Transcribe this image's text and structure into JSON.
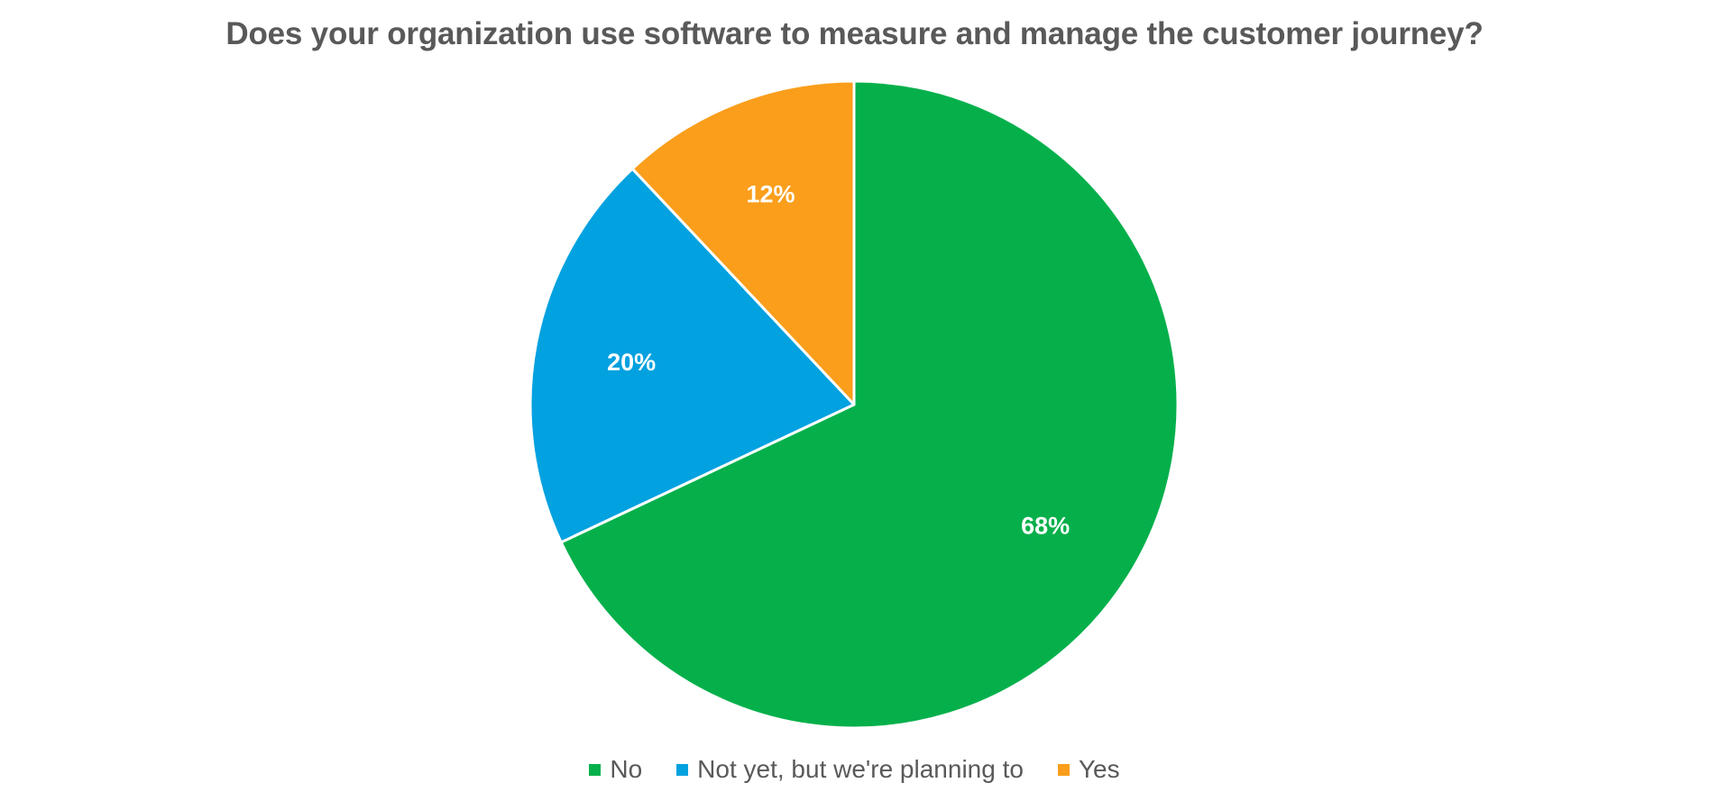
{
  "chart_data": {
    "type": "pie",
    "title": "Does your organization use software to measure and manage the customer journey?",
    "slices": [
      {
        "label": "No",
        "value": 68,
        "display": "68%",
        "color": "#05B04B"
      },
      {
        "label": "Not yet, but we're planning to",
        "value": 20,
        "display": "20%",
        "color": "#02A1E0"
      },
      {
        "label": "Yes",
        "value": 12,
        "display": "12%",
        "color": "#FA9E1B"
      }
    ],
    "start": "top",
    "direction": "clockwise",
    "legend_position": "bottom"
  }
}
